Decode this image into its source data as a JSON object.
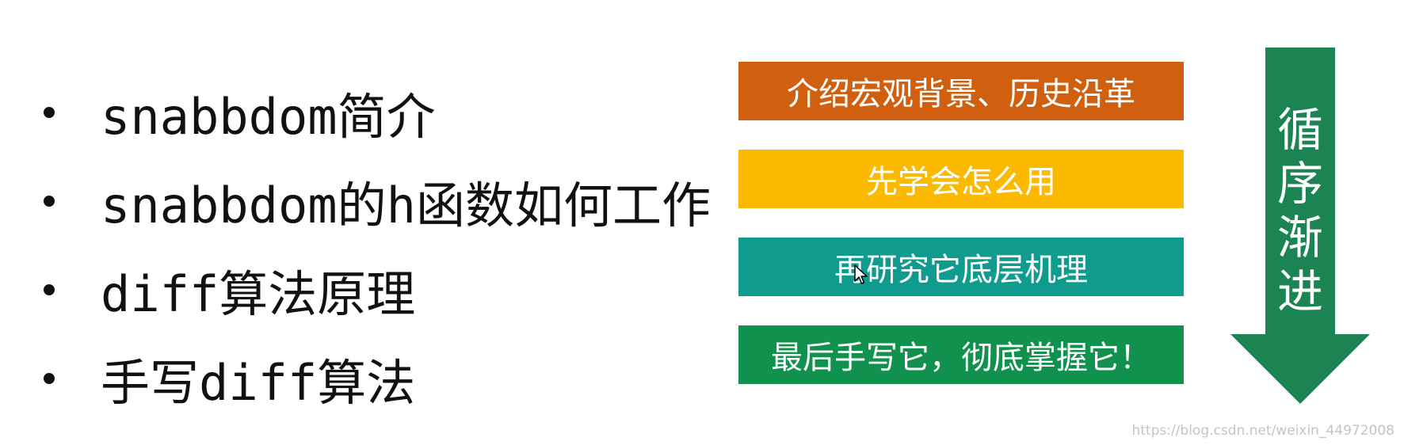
{
  "bullets": [
    {
      "text": "snabbdom简介"
    },
    {
      "text": "snabbdom的h函数如何工作"
    },
    {
      "text": "diff算法原理"
    },
    {
      "text": "手写diff算法"
    }
  ],
  "steps": [
    {
      "text": "介绍宏观背景、历史沿革",
      "color": "#D0600F"
    },
    {
      "text": "先学会怎么用",
      "color": "#FBBA00"
    },
    {
      "text": "再研究它底层机理",
      "color": "#0F9C8E"
    },
    {
      "text": "最后手写它，彻底掌握它！",
      "color": "#10914E"
    }
  ],
  "arrow": {
    "label": "循序渐进",
    "color": "#1B8452"
  },
  "cursor_icon": "mouse-pointer-icon",
  "watermark": "https://blog.csdn.net/weixin_44972008"
}
